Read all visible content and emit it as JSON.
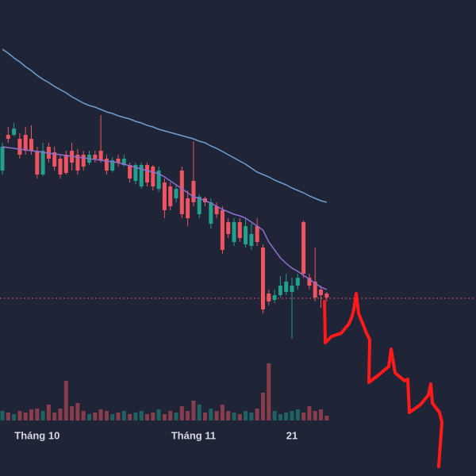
{
  "chart_data": {
    "type": "candlestick",
    "categories": [
      null,
      null,
      null,
      null,
      null,
      null,
      "Tháng 10",
      null,
      null,
      null,
      null,
      null,
      null,
      null,
      null,
      null,
      null,
      null,
      null,
      null,
      null,
      null,
      null,
      null,
      null,
      null,
      null,
      null,
      null,
      null,
      null,
      null,
      null,
      "Tháng 11",
      null,
      null,
      null,
      null,
      null,
      null,
      null,
      null,
      null,
      null,
      null,
      null,
      null,
      null,
      null,
      null,
      "21",
      null,
      null,
      null,
      null,
      null,
      null
    ],
    "open": [
      385,
      430,
      430,
      425,
      430,
      425,
      410,
      380,
      415,
      408,
      400,
      405,
      410,
      405,
      405,
      395,
      405,
      410,
      400,
      385,
      400,
      392,
      392,
      372,
      365,
      392,
      390,
      362,
      370,
      365,
      350,
      385,
      350,
      372,
      330,
      350,
      318,
      340,
      335,
      320,
      295,
      320,
      292,
      290,
      315,
      288,
      230,
      222,
      228,
      232,
      232,
      240,
      320,
      250,
      245,
      235,
      230
    ],
    "close": [
      415,
      425,
      438,
      405,
      410,
      410,
      380,
      410,
      400,
      390,
      380,
      382,
      395,
      385,
      390,
      405,
      400,
      398,
      385,
      398,
      395,
      400,
      375,
      392,
      392,
      370,
      365,
      385,
      335,
      340,
      362,
      330,
      325,
      345,
      352,
      345,
      345,
      330,
      285,
      305,
      320,
      300,
      315,
      305,
      295,
      210,
      220,
      228,
      240,
      245,
      240,
      250,
      255,
      240,
      225,
      228,
      225
    ],
    "high": [
      420,
      440,
      445,
      432,
      440,
      442,
      415,
      420,
      420,
      415,
      405,
      410,
      420,
      412,
      410,
      410,
      410,
      455,
      405,
      402,
      405,
      405,
      395,
      395,
      395,
      395,
      392,
      390,
      375,
      370,
      368,
      390,
      360,
      422,
      355,
      352,
      350,
      345,
      340,
      325,
      325,
      325,
      325,
      318,
      325,
      292,
      235,
      235,
      252,
      255,
      250,
      255,
      322,
      255,
      288,
      240,
      232
    ],
    "low": [
      380,
      420,
      428,
      400,
      405,
      405,
      375,
      378,
      395,
      385,
      375,
      380,
      385,
      380,
      385,
      392,
      395,
      395,
      380,
      383,
      390,
      390,
      370,
      368,
      362,
      365,
      360,
      358,
      325,
      335,
      345,
      325,
      315,
      340,
      325,
      340,
      312,
      325,
      280,
      300,
      290,
      295,
      288,
      285,
      290,
      205,
      215,
      218,
      225,
      228,
      173,
      235,
      250,
      235,
      220,
      212,
      220
    ],
    "volume": [
      12,
      10,
      8,
      12,
      10,
      14,
      15,
      12,
      20,
      10,
      15,
      50,
      18,
      22,
      12,
      8,
      10,
      14,
      12,
      8,
      10,
      12,
      8,
      10,
      12,
      8,
      10,
      14,
      8,
      12,
      10,
      18,
      12,
      25,
      20,
      10,
      15,
      12,
      20,
      12,
      10,
      8,
      12,
      10,
      15,
      35,
      72,
      12,
      8,
      10,
      12,
      14,
      10,
      18,
      12,
      14,
      6
    ],
    "series": [
      {
        "color": "#6f9fd0",
        "values": [
          538,
          533,
          527,
          522,
          516,
          511,
          505,
          500,
          496,
          491,
          487,
          483,
          478,
          474,
          470,
          467,
          465,
          462,
          459,
          457,
          454,
          452,
          450,
          447,
          445,
          442,
          440,
          437,
          435,
          433,
          431,
          429,
          427,
          425,
          422,
          420,
          416,
          413,
          409,
          405,
          401,
          397,
          393,
          388,
          383,
          380,
          377,
          373,
          370,
          367,
          363,
          360,
          357,
          353,
          350,
          347,
          345
        ]
      },
      {
        "color": "#8e6fd0",
        "values": [
          415,
          414,
          413,
          412,
          411,
          410,
          409,
          408,
          407,
          406,
          405,
          404,
          403,
          402,
          401,
          400,
          399,
          398,
          397,
          396,
          395,
          393,
          391,
          389,
          387,
          385,
          383,
          381,
          377,
          372,
          367,
          362,
          357,
          352,
          350,
          347,
          344,
          340,
          336,
          333,
          330,
          328,
          325,
          320,
          315,
          310,
          295,
          285,
          275,
          268,
          262,
          258,
          253,
          248,
          243,
          238,
          235
        ]
      }
    ],
    "last_price": 224,
    "ylim": [
      0,
      600
    ],
    "volume_lim": [
      0,
      100
    ],
    "up_color": "#22a08c",
    "down_color": "#ef5561"
  }
}
